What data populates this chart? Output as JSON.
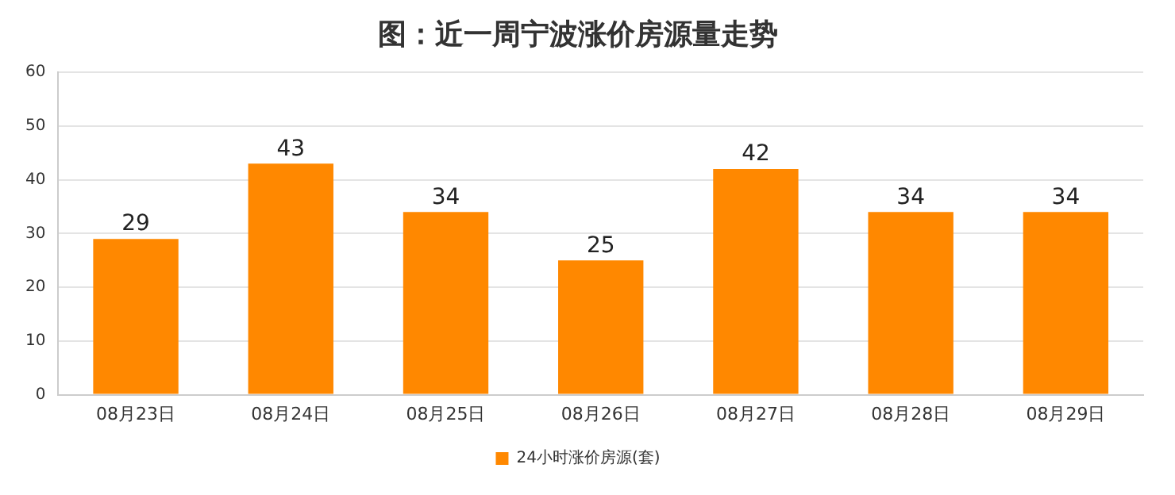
{
  "chart_data": {
    "type": "bar",
    "title": "图：近一周宁波涨价房源量走势",
    "categories": [
      "08月23日",
      "08月24日",
      "08月25日",
      "08月26日",
      "08月27日",
      "08月28日",
      "08月29日"
    ],
    "series": [
      {
        "name": "24小时涨价房源(套)",
        "color": "#ff8800",
        "values": [
          29,
          43,
          34,
          25,
          42,
          34,
          34
        ]
      }
    ],
    "ylim": [
      0,
      60
    ],
    "yticks": [
      0,
      10,
      20,
      30,
      40,
      50,
      60
    ],
    "grid": "y",
    "legend": "bottom",
    "data_labels": true
  }
}
